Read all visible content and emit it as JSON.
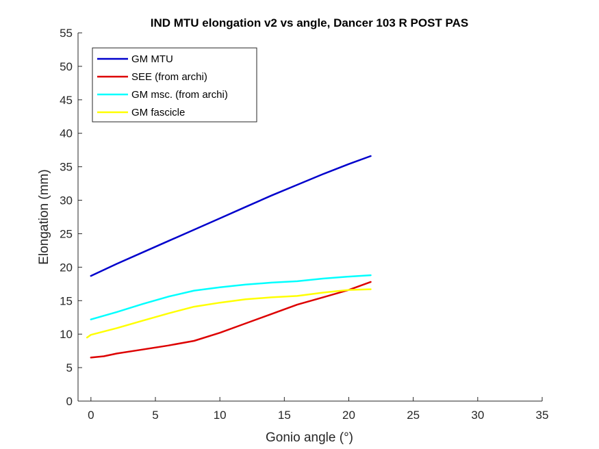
{
  "chart_data": {
    "type": "line",
    "title": "IND MTU elongation v2 vs angle, Dancer 103 R POST PAS",
    "xlabel": "Gonio angle (°)",
    "ylabel": "Elongation (mm)",
    "xlim": [
      -1,
      35
    ],
    "ylim": [
      0,
      55
    ],
    "xticks": [
      0,
      5,
      10,
      15,
      20,
      25,
      30,
      35
    ],
    "yticks": [
      0,
      5,
      10,
      15,
      20,
      25,
      30,
      35,
      40,
      45,
      50,
      55
    ],
    "grid": false,
    "legend": "top-left",
    "series": [
      {
        "name": "GM MTU",
        "color": "#0000cc",
        "x": [
          0,
          2,
          4,
          6,
          8,
          10,
          12,
          14,
          16,
          18,
          20,
          21.7
        ],
        "y": [
          18.7,
          20.5,
          22.2,
          23.9,
          25.6,
          27.3,
          29.0,
          30.7,
          32.3,
          33.9,
          35.4,
          36.6
        ]
      },
      {
        "name": "SEE (from archi)",
        "color": "#dd0000",
        "x": [
          0,
          1,
          2,
          4,
          6,
          8,
          10,
          12,
          14,
          16,
          18,
          20,
          21.7
        ],
        "y": [
          6.5,
          6.7,
          7.1,
          7.7,
          8.3,
          9.0,
          10.2,
          11.6,
          13.0,
          14.4,
          15.5,
          16.6,
          17.8
        ]
      },
      {
        "name": "GM msc. (from archi)",
        "color": "#00ffff",
        "x": [
          0,
          2,
          4,
          6,
          8,
          10,
          12,
          14,
          16,
          18,
          20,
          21.7
        ],
        "y": [
          12.2,
          13.3,
          14.5,
          15.6,
          16.5,
          17.0,
          17.4,
          17.7,
          17.9,
          18.3,
          18.6,
          18.8
        ]
      },
      {
        "name": "GM fascicle",
        "color": "#ffff00",
        "x": [
          -0.3,
          0,
          2,
          4,
          6,
          8,
          10,
          12,
          14,
          16,
          18,
          20,
          21.7
        ],
        "y": [
          9.5,
          9.9,
          10.9,
          12.0,
          13.1,
          14.1,
          14.7,
          15.2,
          15.5,
          15.7,
          16.2,
          16.6,
          16.7
        ]
      }
    ]
  }
}
